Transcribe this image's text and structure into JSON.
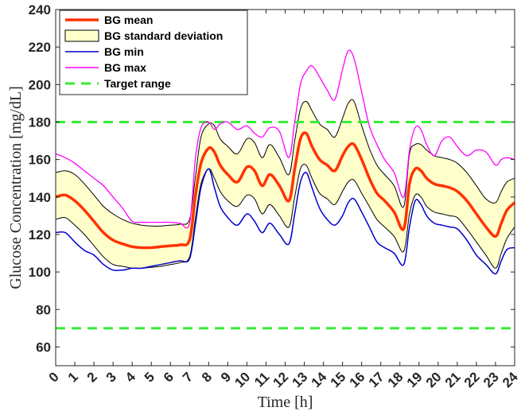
{
  "chart_data": {
    "type": "line",
    "xlabel": "Time [h]",
    "ylabel": "Glucose Concentration [mg/dL]",
    "xlim": [
      0,
      24
    ],
    "ylim": [
      50,
      240
    ],
    "x_ticks": [
      "0",
      "1",
      "2",
      "3",
      "4",
      "5",
      "6",
      "7",
      "8",
      "9",
      "10",
      "11",
      "12",
      "13",
      "14",
      "15",
      "16",
      "17",
      "18",
      "19",
      "20",
      "21",
      "22",
      "23",
      "24"
    ],
    "y_ticks": [
      "60",
      "80",
      "100",
      "120",
      "140",
      "160",
      "180",
      "200",
      "220",
      "240"
    ],
    "grid": false,
    "legend_position": "top-left",
    "legend": [
      {
        "label": "BG mean",
        "color": "#ff3300",
        "style": "line-thick"
      },
      {
        "label": "BG standard deviation",
        "color": "#ffffcc",
        "style": "patch"
      },
      {
        "label": "BG min",
        "color": "#0000cc",
        "style": "line"
      },
      {
        "label": "BG max",
        "color": "#ff00ff",
        "style": "line"
      },
      {
        "label": "Target range",
        "color": "#33ee33",
        "style": "dashed"
      }
    ],
    "target_range": [
      70,
      180
    ],
    "x": [
      0,
      0.5,
      1,
      1.5,
      2,
      2.5,
      3,
      3.5,
      4,
      4.5,
      5,
      5.5,
      6,
      6.5,
      7,
      7.3,
      7.6,
      8,
      8.3,
      8.6,
      9,
      9.5,
      10,
      10.4,
      10.8,
      11.2,
      11.7,
      12.2,
      12.5,
      12.8,
      13.1,
      13.4,
      13.8,
      14.2,
      14.6,
      15,
      15.3,
      15.6,
      16,
      16.4,
      16.8,
      17.2,
      17.7,
      18.2,
      18.5,
      18.8,
      19.1,
      19.4,
      19.8,
      20.2,
      20.6,
      21,
      21.5,
      22,
      22.5,
      23,
      23.3,
      23.6,
      24
    ],
    "series": [
      {
        "name": "BG mean",
        "color": "#ff3300",
        "values": [
          140,
          141,
          138,
          133,
          127,
          121,
          117,
          115,
          113.5,
          113,
          113,
          113.5,
          114,
          114.5,
          117,
          140,
          158,
          166,
          164,
          157,
          152,
          148,
          156,
          154,
          146,
          152,
          146,
          138,
          155,
          171,
          174,
          167,
          160,
          157,
          154,
          162,
          167,
          168,
          160,
          150,
          142,
          138,
          132,
          123,
          147,
          155,
          154,
          150,
          147,
          146,
          145,
          143,
          138,
          131,
          124,
          119,
          126,
          133,
          137
        ]
      },
      {
        "name": "SD upper",
        "color": "#000000",
        "values": [
          153,
          154,
          152,
          147,
          141,
          135,
          131,
          128,
          126,
          125,
          124.5,
          124.5,
          125,
          125.5,
          128,
          150,
          172,
          179,
          178,
          171,
          167,
          163,
          171,
          169,
          161,
          168,
          161,
          152,
          170,
          187,
          191,
          186,
          179,
          176,
          172,
          182,
          190,
          191,
          178,
          166,
          157,
          152,
          146,
          135,
          163,
          168,
          168,
          165,
          162,
          161,
          160,
          158,
          153,
          146,
          139,
          137,
          143,
          148,
          150
        ]
      },
      {
        "name": "SD lower",
        "color": "#000000",
        "values": [
          128,
          129,
          125,
          120,
          114,
          108,
          104,
          103,
          102,
          102,
          102.5,
          103,
          104,
          105,
          108,
          128,
          147,
          155,
          150,
          143,
          138,
          135,
          141,
          139,
          131,
          136,
          130,
          124,
          140,
          155,
          157,
          150,
          142,
          139,
          136,
          143,
          148,
          149,
          142,
          135,
          128,
          124,
          119,
          111,
          131,
          141,
          140,
          135,
          132,
          131,
          130,
          129,
          123,
          116,
          109,
          102,
          110,
          118,
          124
        ]
      },
      {
        "name": "BG min",
        "color": "#0000cc",
        "values": [
          121,
          121,
          116,
          111.5,
          109,
          104,
          101,
          101,
          102,
          102,
          103,
          104,
          105,
          106,
          107,
          125,
          145,
          155,
          145,
          135,
          129,
          125,
          131,
          127,
          121,
          126,
          120,
          115,
          131,
          148,
          153,
          145,
          134,
          128,
          125,
          130,
          137,
          139,
          132,
          124,
          116,
          113,
          110,
          104,
          124,
          138,
          136,
          130,
          126,
          125,
          124,
          123,
          117,
          109,
          104,
          99,
          106,
          112,
          113
        ]
      },
      {
        "name": "BG max",
        "color": "#ff00ff",
        "values": [
          163,
          161,
          158,
          154,
          150,
          146,
          140,
          134,
          127,
          126.5,
          126.5,
          126.5,
          126.5,
          126,
          126,
          160,
          177,
          180,
          176,
          179,
          180,
          176,
          178,
          174,
          172,
          177,
          175,
          161,
          180,
          200,
          207,
          210,
          204,
          197,
          192,
          208,
          218,
          214,
          196,
          178,
          168,
          160,
          153,
          140,
          165,
          177,
          176,
          168,
          162,
          170,
          172,
          167,
          162,
          165,
          164,
          157,
          160,
          161,
          160
        ]
      }
    ]
  }
}
